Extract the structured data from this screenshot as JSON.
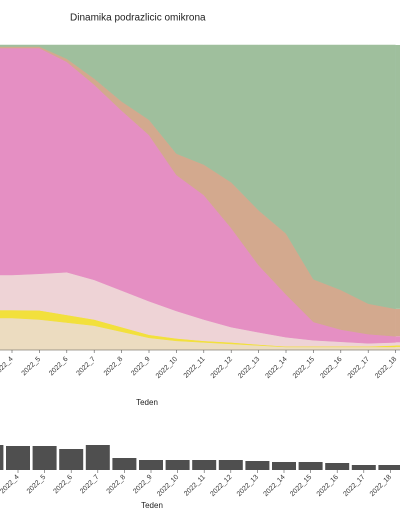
{
  "chart_data": [
    {
      "type": "area",
      "stacked": true,
      "title": "Dinamika podrazlicic omikrona",
      "x_label": "Teden",
      "categories": [
        null,
        "2022_4",
        "2022_5",
        "2022_6",
        "2022_7",
        "2022_8",
        "2022_9",
        "2022_10",
        "2022_11",
        "2022_12",
        "2022_13",
        "2022_14",
        "2022_15",
        "2022_16",
        "2022_17",
        "2022_18"
      ],
      "ylim": [
        0,
        1
      ],
      "series": [
        {
          "color": "#ecdcc0",
          "values": [
            0.105,
            0.105,
            0.1,
            0.09,
            0.08,
            0.06,
            0.04,
            0.03,
            0.025,
            0.02,
            0.015,
            0.01,
            0.01,
            0.01,
            0.01,
            0.01
          ]
        },
        {
          "color": "#f2e03c",
          "values": [
            0.026,
            0.026,
            0.03,
            0.025,
            0.02,
            0.015,
            0.01,
            0.008,
            0.005,
            0.005,
            0.003,
            0.002,
            0.002,
            0.002,
            0.002,
            0.005
          ]
        },
        {
          "color": "#eed3d6",
          "values": [
            0.115,
            0.115,
            0.12,
            0.14,
            0.13,
            0.12,
            0.11,
            0.09,
            0.07,
            0.05,
            0.04,
            0.03,
            0.02,
            0.015,
            0.01,
            0.01
          ]
        },
        {
          "color": "#e58fc3",
          "values": [
            0.744,
            0.744,
            0.74,
            0.69,
            0.64,
            0.59,
            0.545,
            0.446,
            0.408,
            0.325,
            0.22,
            0.14,
            0.06,
            0.04,
            0.03,
            0.02
          ]
        },
        {
          "color": "#d3a98e",
          "values": [
            0.005,
            0.005,
            0.005,
            0.01,
            0.02,
            0.03,
            0.05,
            0.07,
            0.1,
            0.15,
            0.18,
            0.2,
            0.14,
            0.13,
            0.1,
            0.09
          ]
        },
        {
          "color": "#9fbf9d",
          "values": [
            0.005,
            0.005,
            0.005,
            0.045,
            0.11,
            0.185,
            0.245,
            0.356,
            0.392,
            0.45,
            0.542,
            0.618,
            0.768,
            0.803,
            0.848,
            0.865
          ]
        }
      ]
    },
    {
      "type": "bar",
      "x_label": "Teden",
      "color": "#4f4f4f",
      "categories": [
        null,
        "2022_4",
        "2022_5",
        "2022_6",
        "2022_7",
        "2022_8",
        "2022_9",
        "2022_10",
        "2022_11",
        "2022_12",
        "2022_13",
        "2022_14",
        "2022_15",
        "2022_16",
        "2022_17",
        "2022_18"
      ],
      "values": [
        250,
        240,
        240,
        210,
        250,
        120,
        100,
        100,
        100,
        100,
        90,
        80,
        80,
        70,
        50,
        50
      ],
      "ylim": [
        0,
        300
      ]
    }
  ]
}
